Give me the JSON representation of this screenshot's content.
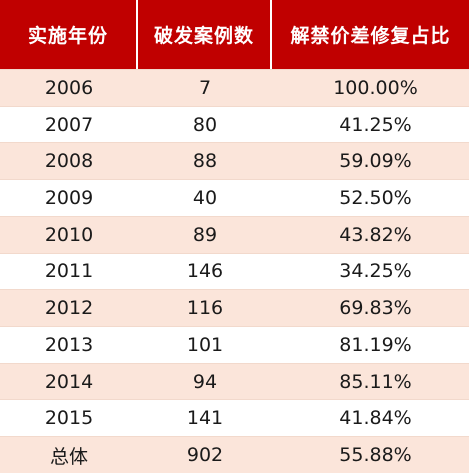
{
  "table": {
    "headers": [
      "实施年份",
      "破发案例数",
      "解禁价差修复占比"
    ],
    "rows": [
      [
        "2006",
        "7",
        "100.00%"
      ],
      [
        "2007",
        "80",
        "41.25%"
      ],
      [
        "2008",
        "88",
        "59.09%"
      ],
      [
        "2009",
        "40",
        "52.50%"
      ],
      [
        "2010",
        "89",
        "43.82%"
      ],
      [
        "2011",
        "146",
        "34.25%"
      ],
      [
        "2012",
        "116",
        "69.83%"
      ],
      [
        "2013",
        "101",
        "81.19%"
      ],
      [
        "2014",
        "94",
        "85.11%"
      ],
      [
        "2015",
        "141",
        "41.84%"
      ],
      [
        "总体",
        "902",
        "55.88%"
      ]
    ]
  },
  "colors": {
    "header_bg": "#c00000",
    "header_text": "#ffffff",
    "stripe": "#fbe5da",
    "row_bg": "#ffffff"
  },
  "chart_data": {
    "type": "table",
    "columns": [
      "实施年份",
      "破发案例数",
      "解禁价差修复占比"
    ],
    "rows": [
      {
        "year": "2006",
        "count": 7,
        "ratio_pct": 100.0
      },
      {
        "year": "2007",
        "count": 80,
        "ratio_pct": 41.25
      },
      {
        "year": "2008",
        "count": 88,
        "ratio_pct": 59.09
      },
      {
        "year": "2009",
        "count": 40,
        "ratio_pct": 52.5
      },
      {
        "year": "2010",
        "count": 89,
        "ratio_pct": 43.82
      },
      {
        "year": "2011",
        "count": 146,
        "ratio_pct": 34.25
      },
      {
        "year": "2012",
        "count": 116,
        "ratio_pct": 69.83
      },
      {
        "year": "2013",
        "count": 101,
        "ratio_pct": 81.19
      },
      {
        "year": "2014",
        "count": 94,
        "ratio_pct": 85.11
      },
      {
        "year": "2015",
        "count": 141,
        "ratio_pct": 41.84
      },
      {
        "year": "总体",
        "count": 902,
        "ratio_pct": 55.88
      }
    ]
  }
}
